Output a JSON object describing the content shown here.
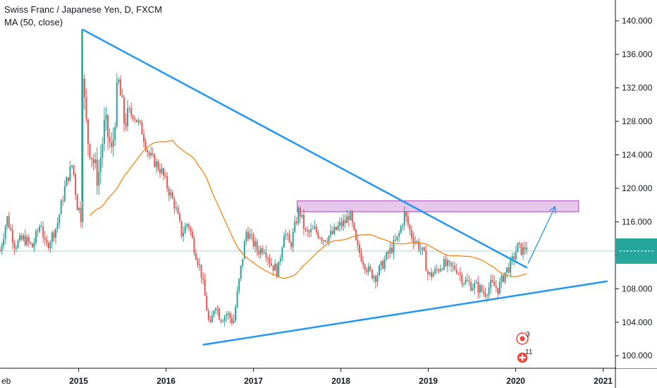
{
  "legend": {
    "title": "Swiss Franc / Japanese Yen, D, FXCM",
    "indicator": "MA (50, close)"
  },
  "colors": {
    "up": "#26a69a",
    "down": "#ef5350",
    "ma": "#f57c00",
    "trendline": "#2196f3",
    "zone_fill": "#e1bee7",
    "zone_stroke": "#ab47bc",
    "price_tag": "#26a69a",
    "event": "#f44336"
  },
  "price_tag_value": "",
  "events": [
    {
      "label": "3",
      "icon": "news-flag-icon"
    },
    {
      "label": "11",
      "icon": "swiss-flag-icon"
    }
  ],
  "chart_data": {
    "type": "candlestick",
    "title": "Swiss Franc / Japanese Yen, D, FXCM",
    "indicator": "MA (50, close)",
    "xlabel": "",
    "ylabel": "",
    "x_ticks": [
      "eb",
      "2015",
      "2016",
      "2017",
      "2018",
      "2019",
      "2020",
      "2021"
    ],
    "x_tick_dates": [
      2014.08,
      2015.0,
      2016.0,
      2017.0,
      2018.0,
      2019.0,
      2020.0,
      2021.0
    ],
    "y_ticks": [
      "100.000",
      "104.000",
      "108.000",
      "112.000",
      "116.000",
      "120.000",
      "124.000",
      "128.000",
      "132.000",
      "136.000",
      "140.000"
    ],
    "y_tick_values": [
      100,
      104,
      108,
      112,
      116,
      120,
      124,
      128,
      132,
      136,
      140
    ],
    "ylim": [
      98.5,
      142.5
    ],
    "xlim": [
      2014.1,
      2021.14
    ],
    "grid": false,
    "price_path": [
      [
        2014.1,
        112.5
      ],
      [
        2014.18,
        116.5
      ],
      [
        2014.27,
        113.2
      ],
      [
        2014.37,
        114.0
      ],
      [
        2014.47,
        113.0
      ],
      [
        2014.57,
        116.0
      ],
      [
        2014.62,
        112.8
      ],
      [
        2014.75,
        115.5
      ],
      [
        2014.85,
        120.5
      ],
      [
        2014.93,
        123.0
      ],
      [
        2014.98,
        118.0
      ],
      [
        2015.03,
        117.0
      ],
      [
        2015.04,
        136.0
      ],
      [
        2015.06,
        131.0
      ],
      [
        2015.1,
        126.0
      ],
      [
        2015.15,
        124.0
      ],
      [
        2015.22,
        121.0
      ],
      [
        2015.3,
        128.0
      ],
      [
        2015.38,
        124.0
      ],
      [
        2015.45,
        133.0
      ],
      [
        2015.52,
        128.0
      ],
      [
        2015.62,
        129.0
      ],
      [
        2015.72,
        127.0
      ],
      [
        2015.8,
        124.0
      ],
      [
        2015.88,
        123.0
      ],
      [
        2015.95,
        122.0
      ],
      [
        2016.02,
        120.0
      ],
      [
        2016.1,
        118.0
      ],
      [
        2016.18,
        114.5
      ],
      [
        2016.25,
        116.0
      ],
      [
        2016.32,
        113.0
      ],
      [
        2016.4,
        110.0
      ],
      [
        2016.46,
        106.0
      ],
      [
        2016.5,
        103.0
      ],
      [
        2016.56,
        106.5
      ],
      [
        2016.62,
        104.5
      ],
      [
        2016.7,
        105.0
      ],
      [
        2016.77,
        104.0
      ],
      [
        2016.85,
        110.0
      ],
      [
        2016.92,
        115.0
      ],
      [
        2016.97,
        114.0
      ],
      [
        2017.05,
        112.5
      ],
      [
        2017.12,
        113.0
      ],
      [
        2017.2,
        111.0
      ],
      [
        2017.28,
        110.0
      ],
      [
        2017.35,
        115.0
      ],
      [
        2017.42,
        113.0
      ],
      [
        2017.52,
        117.5
      ],
      [
        2017.6,
        114.5
      ],
      [
        2017.7,
        115.0
      ],
      [
        2017.8,
        114.0
      ],
      [
        2017.9,
        114.5
      ],
      [
        2017.98,
        115.5
      ],
      [
        2018.05,
        116.0
      ],
      [
        2018.1,
        117.0
      ],
      [
        2018.18,
        113.0
      ],
      [
        2018.25,
        111.5
      ],
      [
        2018.32,
        110.0
      ],
      [
        2018.4,
        109.5
      ],
      [
        2018.48,
        111.0
      ],
      [
        2018.56,
        112.5
      ],
      [
        2018.65,
        114.0
      ],
      [
        2018.73,
        117.0
      ],
      [
        2018.8,
        114.5
      ],
      [
        2018.87,
        113.5
      ],
      [
        2018.95,
        112.0
      ],
      [
        2019.0,
        109.5
      ],
      [
        2019.08,
        110.0
      ],
      [
        2019.16,
        111.0
      ],
      [
        2019.25,
        110.5
      ],
      [
        2019.32,
        110.5
      ],
      [
        2019.4,
        109.0
      ],
      [
        2019.48,
        108.5
      ],
      [
        2019.56,
        108.2
      ],
      [
        2019.64,
        107.5
      ],
      [
        2019.72,
        108.5
      ],
      [
        2019.8,
        108.0
      ],
      [
        2019.88,
        110.0
      ],
      [
        2019.95,
        111.0
      ],
      [
        2020.02,
        113.0
      ],
      [
        2020.08,
        112.5
      ],
      [
        2020.14,
        113.5
      ]
    ],
    "trendlines": [
      {
        "name": "",
        "points": [
          [
            2015.04,
            139.0
          ],
          [
            2020.13,
            110.5
          ]
        ]
      },
      {
        "name": "",
        "points": [
          [
            2016.42,
            101.3
          ],
          [
            2021.05,
            108.9
          ]
        ]
      }
    ],
    "projection_arrow": {
      "points": [
        [
          2020.14,
          111.0
        ],
        [
          2020.45,
          117.8
        ]
      ]
    },
    "resistance_zone": {
      "x": [
        2017.5,
        2020.72
      ],
      "y": [
        117.2,
        118.5
      ]
    },
    "reference_line": 112.5
  }
}
